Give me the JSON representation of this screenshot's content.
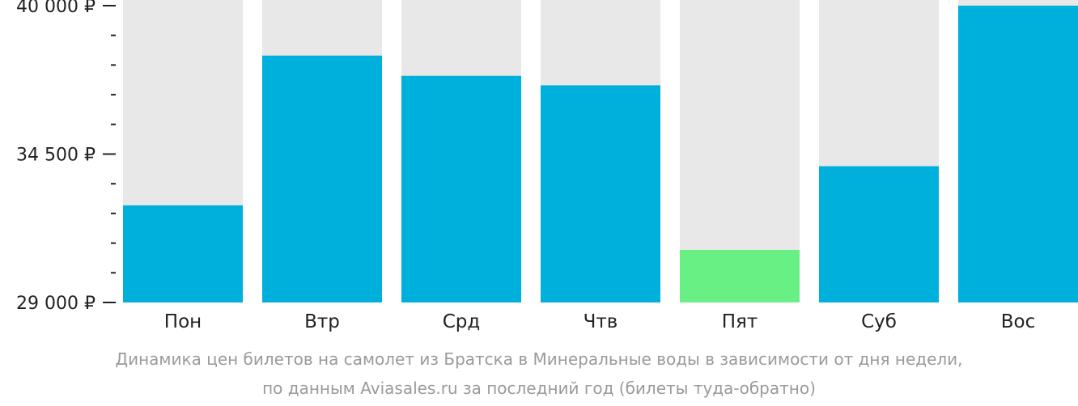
{
  "chart_data": {
    "type": "bar",
    "categories": [
      "Пон",
      "Втр",
      "Срд",
      "Чтв",
      "Пят",
      "Суб",
      "Вос"
    ],
    "values": [
      32600,
      38150,
      37400,
      37050,
      30950,
      34050,
      40000
    ],
    "ylim": [
      29000,
      40000
    ],
    "y_ticks": [
      {
        "value": 40000,
        "label": "40 000 ₽"
      },
      {
        "value": 34500,
        "label": "34 500 ₽"
      },
      {
        "value": 29000,
        "label": "29 000 ₽"
      }
    ],
    "y_minor_step": 1100,
    "colors": {
      "bar": "#00b0dc",
      "bar_highlight": "#69f084",
      "track": "#e8e8e8",
      "axis": "#222222"
    },
    "highlight_index": 4,
    "caption_lines": [
      "Динамика цен билетов на самолет из Братска в Минеральные воды в зависимости от дня недели,",
      "по данным Aviasales.ru за последний год (билеты туда-обратно)"
    ],
    "grid": false,
    "legend": "none"
  }
}
